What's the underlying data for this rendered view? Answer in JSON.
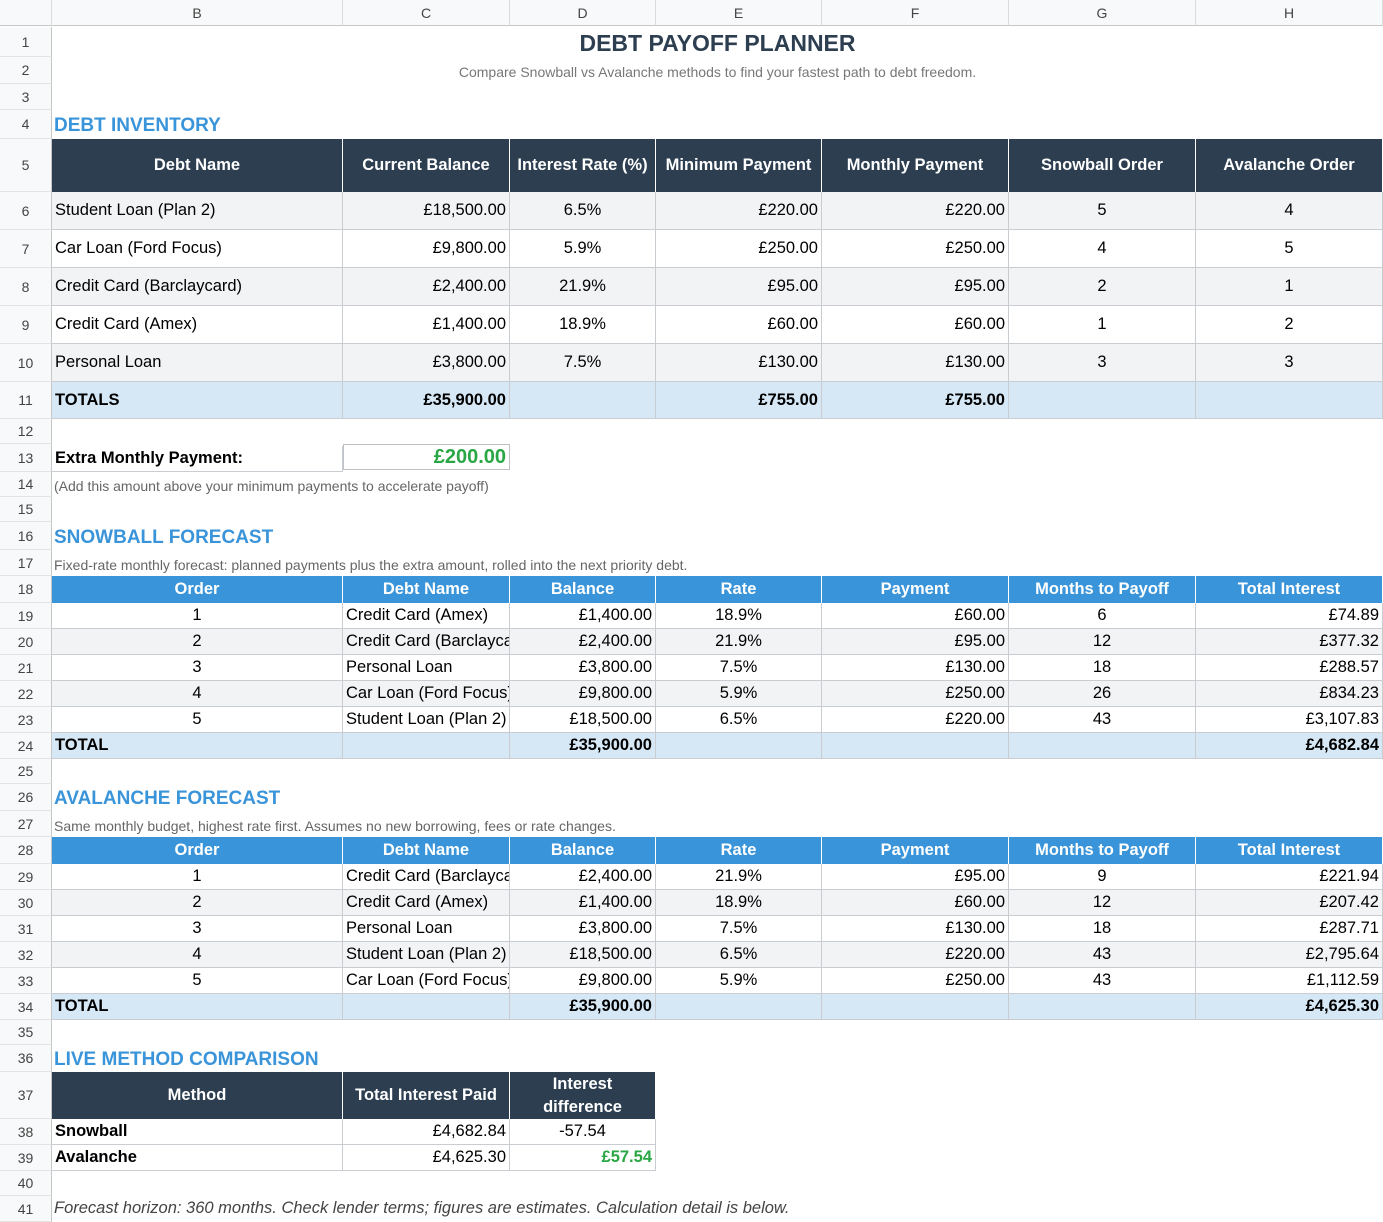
{
  "sheet": {
    "columns": [
      "B",
      "C",
      "D",
      "E",
      "F",
      "G",
      "H"
    ],
    "rows": [
      "1",
      "2",
      "3",
      "4",
      "5",
      "6",
      "7",
      "8",
      "9",
      "10",
      "11",
      "12",
      "13",
      "14",
      "15",
      "16",
      "17",
      "18",
      "19",
      "20",
      "21",
      "22",
      "23",
      "24",
      "25",
      "26",
      "27",
      "28",
      "29",
      "30",
      "31",
      "32",
      "33",
      "34",
      "35",
      "36",
      "37",
      "38",
      "39",
      "40",
      "41"
    ]
  },
  "title": "DEBT PAYOFF PLANNER",
  "subtitle": "Compare Snowball vs Avalanche methods to find your fastest path to debt freedom.",
  "inventory": {
    "heading": "DEBT INVENTORY",
    "headers": [
      "Debt Name",
      "Current Balance",
      "Interest Rate (%)",
      "Minimum Payment",
      "Monthly Payment",
      "Snowball Order",
      "Avalanche Order"
    ],
    "rows": [
      [
        "Student Loan (Plan 2)",
        "£18,500.00",
        "6.5%",
        "£220.00",
        "£220.00",
        "5",
        "4"
      ],
      [
        "Car Loan (Ford Focus)",
        "£9,800.00",
        "5.9%",
        "£250.00",
        "£250.00",
        "4",
        "5"
      ],
      [
        "Credit Card (Barclaycard)",
        "£2,400.00",
        "21.9%",
        "£95.00",
        "£95.00",
        "2",
        "1"
      ],
      [
        "Credit Card (Amex)",
        "£1,400.00",
        "18.9%",
        "£60.00",
        "£60.00",
        "1",
        "2"
      ],
      [
        "Personal Loan",
        "£3,800.00",
        "7.5%",
        "£130.00",
        "£130.00",
        "3",
        "3"
      ]
    ],
    "totals": [
      "TOTALS",
      "£35,900.00",
      "",
      "£755.00",
      "£755.00",
      "",
      ""
    ]
  },
  "extra": {
    "label": "Extra Monthly Payment:",
    "value": "£200.00",
    "note": "(Add this amount above your minimum payments to accelerate payoff)"
  },
  "snowball": {
    "heading": "SNOWBALL FORECAST",
    "note": "Fixed-rate monthly forecast: planned payments plus the extra amount, rolled into the next priority debt.",
    "headers": [
      "Order",
      "Debt Name",
      "Balance",
      "Rate",
      "Payment",
      "Months to Payoff",
      "Total Interest"
    ],
    "rows": [
      [
        "1",
        "Credit Card (Amex)",
        "£1,400.00",
        "18.9%",
        "£60.00",
        "6",
        "£74.89"
      ],
      [
        "2",
        "Credit Card (Barclaycard)",
        "£2,400.00",
        "21.9%",
        "£95.00",
        "12",
        "£377.32"
      ],
      [
        "3",
        "Personal Loan",
        "£3,800.00",
        "7.5%",
        "£130.00",
        "18",
        "£288.57"
      ],
      [
        "4",
        "Car Loan (Ford Focus)",
        "£9,800.00",
        "5.9%",
        "£250.00",
        "26",
        "£834.23"
      ],
      [
        "5",
        "Student Loan (Plan 2)",
        "£18,500.00",
        "6.5%",
        "£220.00",
        "43",
        "£3,107.83"
      ]
    ],
    "totals": [
      "TOTAL",
      "",
      "£35,900.00",
      "",
      "",
      "",
      "£4,682.84"
    ]
  },
  "avalanche": {
    "heading": "AVALANCHE FORECAST",
    "note": "Same monthly budget, highest rate first. Assumes no new borrowing, fees or rate changes.",
    "headers": [
      "Order",
      "Debt Name",
      "Balance",
      "Rate",
      "Payment",
      "Months to Payoff",
      "Total Interest"
    ],
    "rows": [
      [
        "1",
        "Credit Card (Barclaycard)",
        "£2,400.00",
        "21.9%",
        "£95.00",
        "9",
        "£221.94"
      ],
      [
        "2",
        "Credit Card (Amex)",
        "£1,400.00",
        "18.9%",
        "£60.00",
        "12",
        "£207.42"
      ],
      [
        "3",
        "Personal Loan",
        "£3,800.00",
        "7.5%",
        "£130.00",
        "18",
        "£287.71"
      ],
      [
        "4",
        "Student Loan (Plan 2)",
        "£18,500.00",
        "6.5%",
        "£220.00",
        "43",
        "£2,795.64"
      ],
      [
        "5",
        "Car Loan (Ford Focus)",
        "£9,800.00",
        "5.9%",
        "£250.00",
        "43",
        "£1,112.59"
      ]
    ],
    "totals": [
      "TOTAL",
      "",
      "£35,900.00",
      "",
      "",
      "",
      "£4,625.30"
    ]
  },
  "comparison": {
    "heading": "LIVE METHOD COMPARISON",
    "headers": [
      "Method",
      "Total Interest Paid",
      "Interest difference"
    ],
    "rows": [
      [
        "Snowball",
        "£4,682.84",
        "-57.54"
      ],
      [
        "Avalanche",
        "£4,625.30",
        "£57.54"
      ]
    ]
  },
  "footer": "Forecast horizon: 360 months. Check lender terms; figures are estimates. Calculation detail is below.",
  "colors": {
    "navy": "#2c3e50",
    "accent_blue": "#3a94d9",
    "total_fill": "#d6e8f6",
    "positive_green": "#2aa745"
  }
}
